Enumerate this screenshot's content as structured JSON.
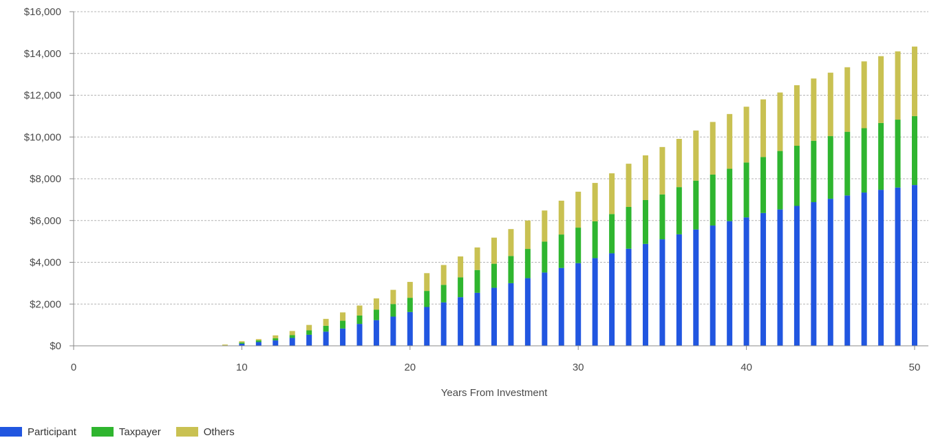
{
  "chart_data": {
    "type": "bar",
    "stacked": true,
    "xlabel": "Years From Investment",
    "ylabel": "",
    "title": "",
    "xlim": [
      0,
      50
    ],
    "ylim": [
      0,
      16000
    ],
    "x_ticks": [
      0,
      10,
      20,
      30,
      40,
      50
    ],
    "y_ticks": [
      0,
      2000,
      4000,
      6000,
      8000,
      10000,
      12000,
      14000,
      16000
    ],
    "y_tick_labels": [
      "$0",
      "$2,000",
      "$4,000",
      "$6,000",
      "$8,000",
      "$10,000",
      "$12,000",
      "$14,000",
      "$16,000"
    ],
    "grid": "horizontal dashed",
    "legend_position": "bottom-left",
    "x": [
      9,
      10,
      11,
      12,
      13,
      14,
      15,
      16,
      17,
      18,
      19,
      20,
      21,
      22,
      23,
      24,
      25,
      26,
      27,
      28,
      29,
      30,
      31,
      32,
      33,
      34,
      35,
      36,
      37,
      38,
      39,
      40,
      41,
      42,
      43,
      44,
      45,
      46,
      47,
      48,
      49,
      50
    ],
    "series": [
      {
        "name": "Participant",
        "color": "#2156e0",
        "values": [
          0,
          100,
          180,
          260,
          380,
          530,
          680,
          830,
          1050,
          1230,
          1400,
          1620,
          1860,
          2080,
          2330,
          2540,
          2780,
          3000,
          3240,
          3510,
          3730,
          3960,
          4200,
          4430,
          4650,
          4880,
          5100,
          5340,
          5570,
          5760,
          5970,
          6150,
          6360,
          6530,
          6700,
          6880,
          7040,
          7200,
          7340,
          7470,
          7580,
          7700
        ]
      },
      {
        "name": "Taxpayer",
        "color": "#2fb52f",
        "values": [
          20,
          60,
          80,
          100,
          130,
          210,
          280,
          370,
          400,
          500,
          600,
          680,
          770,
          840,
          950,
          1090,
          1150,
          1300,
          1400,
          1480,
          1600,
          1700,
          1760,
          1880,
          2000,
          2100,
          2150,
          2260,
          2340,
          2440,
          2510,
          2630,
          2680,
          2800,
          2880,
          2940,
          3000,
          3050,
          3080,
          3200,
          3250,
          3300
        ]
      },
      {
        "name": "Others",
        "color": "#c9c152",
        "values": [
          40,
          60,
          60,
          140,
          200,
          260,
          330,
          400,
          480,
          540,
          680,
          760,
          850,
          950,
          1000,
          1080,
          1250,
          1290,
          1360,
          1490,
          1620,
          1720,
          1840,
          1950,
          2070,
          2140,
          2270,
          2310,
          2400,
          2520,
          2620,
          2670,
          2760,
          2800,
          2900,
          2980,
          3040,
          3090,
          3200,
          3200,
          3270,
          3330
        ]
      }
    ]
  }
}
